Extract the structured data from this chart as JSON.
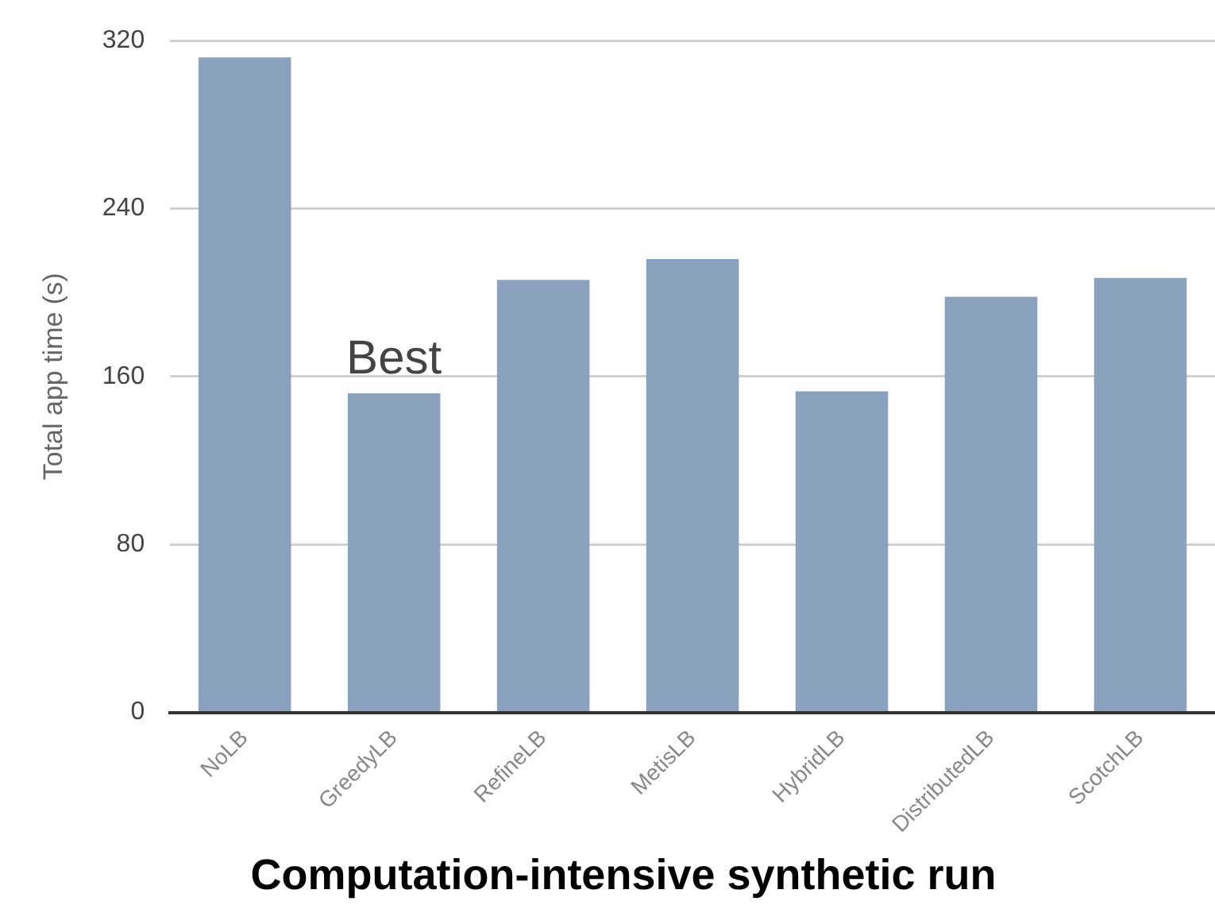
{
  "chart_data": {
    "type": "bar",
    "title": "Computation-intensive synthetic run",
    "ylabel": "Total app time (s)",
    "categories": [
      "NoLB",
      "GreedyLB",
      "RefineLB",
      "MetisLB",
      "HybridLB",
      "DistributedLB",
      "ScotchLB"
    ],
    "values": [
      312,
      152,
      206,
      216,
      153,
      198,
      207
    ],
    "color": "#8aa2bd",
    "ylim": [
      0,
      320
    ],
    "yticks": [
      0,
      80,
      160,
      240,
      320
    ],
    "grid": "y",
    "annotations": [
      {
        "text": "Best",
        "x": "GreedyLB",
        "y": 152
      }
    ]
  }
}
